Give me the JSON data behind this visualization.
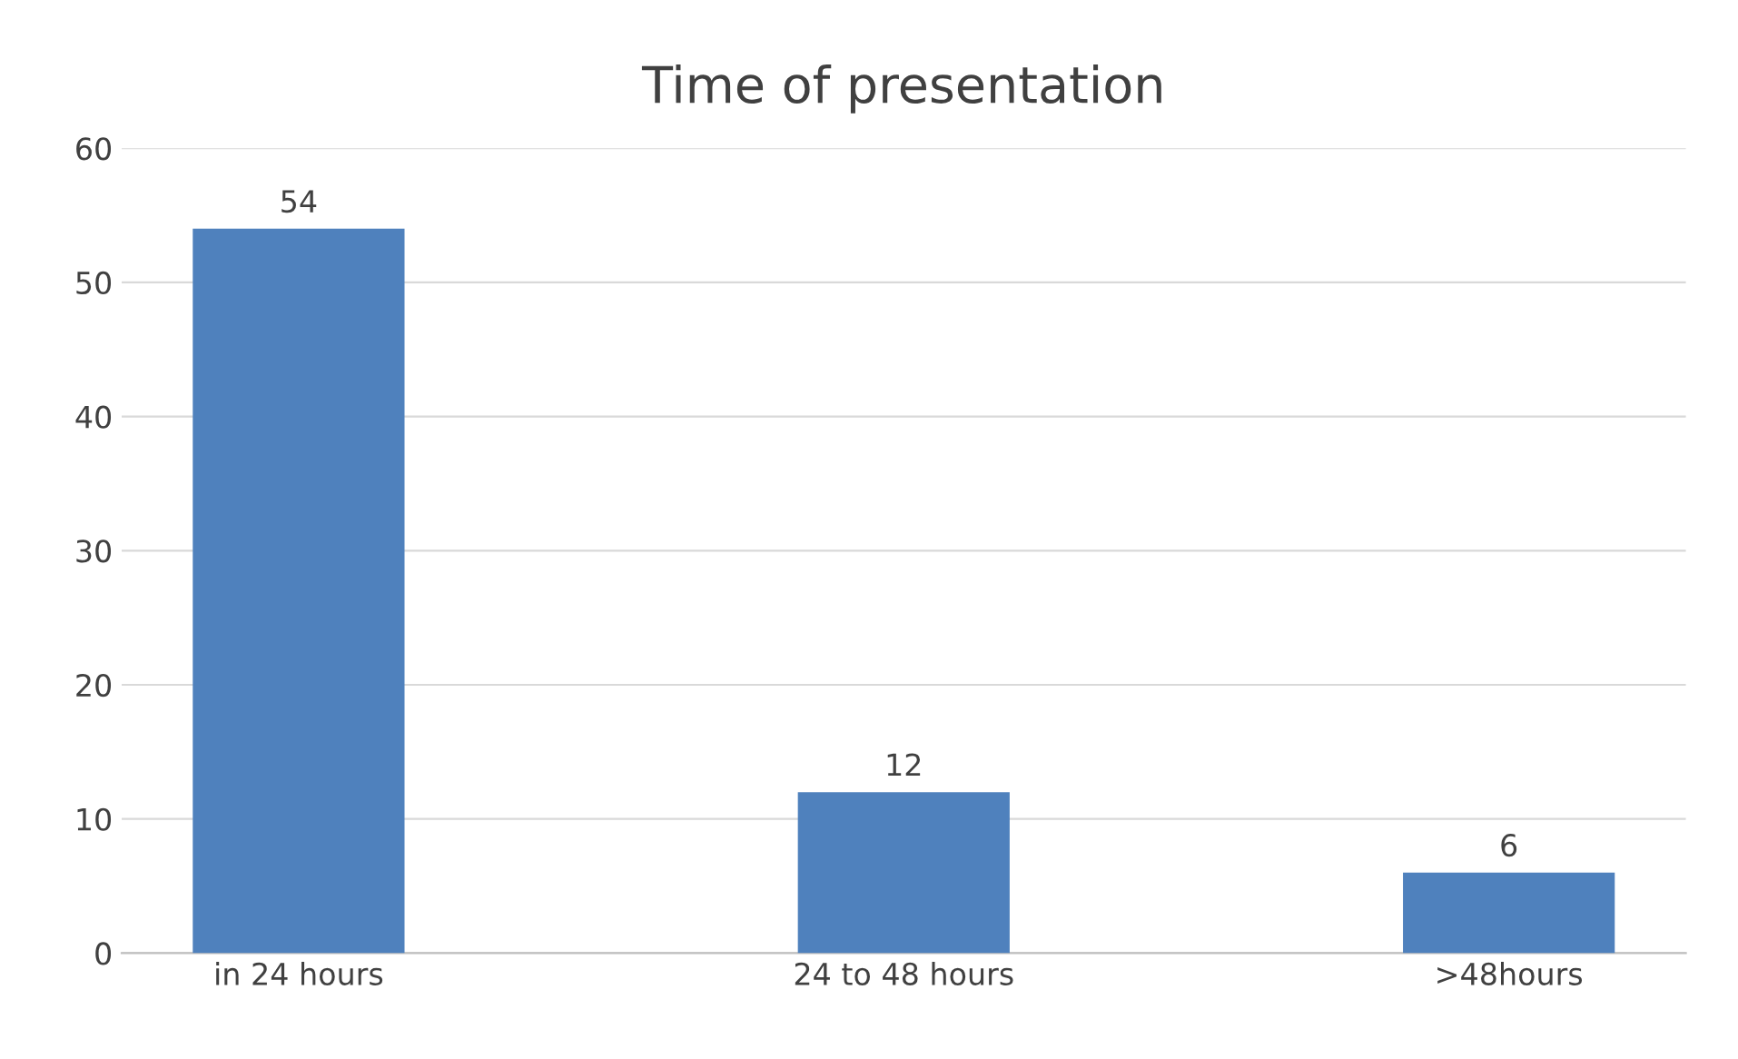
{
  "chart_data": {
    "type": "bar",
    "title": "Time of presentation",
    "categories": [
      "in 24 hours",
      "24 to 48 hours",
      ">48hours"
    ],
    "values": [
      54,
      12,
      6
    ],
    "color": "#4f81bd",
    "ylim": [
      0,
      60
    ],
    "yticks": [
      0,
      10,
      20,
      30,
      40,
      50,
      60
    ],
    "grid": "y",
    "data_labels": true
  }
}
